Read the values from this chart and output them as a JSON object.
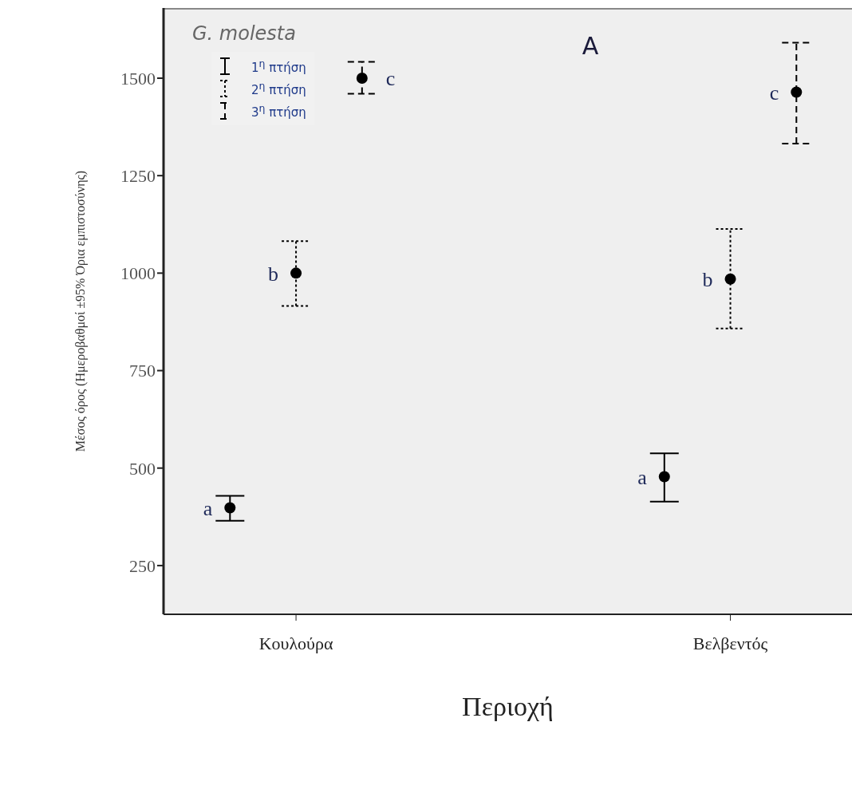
{
  "chart_data": {
    "type": "scatter",
    "title": "G. molesta",
    "xlabel": "Περιοχή",
    "ylabel": "Μέσος όρος (Ημεροβαθμοί ±95% Όρια εμπιστοσύνης)",
    "categories": [
      "Κουλούρα",
      "Βελβεντός"
    ],
    "ylim": [
      125,
      1680
    ],
    "yticks": [
      250,
      500,
      750,
      1000,
      1250,
      1500
    ],
    "series": [
      {
        "name": "1$^{η}$ πτήση",
        "color": "#000000",
        "line_style": "solid",
        "values": [
          398,
          478
        ],
        "errors": [
          [
            365,
            429
          ],
          [
            414,
            538
          ]
        ]
      },
      {
        "name": "2$^{η}$ πτήση",
        "color": "#000000",
        "line_style": "dotted",
        "values": [
          1000,
          985
        ],
        "errors": [
          [
            916,
            1082
          ],
          [
            858,
            1113
          ]
        ]
      },
      {
        "name": "3$^{η}$ πτήση",
        "color": "#000000",
        "line_style": "dashed",
        "values": [
          1500,
          1464
        ],
        "errors": [
          [
            1460,
            1542
          ],
          [
            1332,
            1591
          ]
        ]
      }
    ],
    "legend": "top left",
    "marker": "circle",
    "annotations": [
      "A",
      "a",
      "c",
      "a",
      "c",
      {
        "text": "b",
        "x": "Κουλούρα",
        "y": 1000
      },
      {
        "text": "b",
        "x": "Βελβεντός",
        "y": 985
      }
    ]
  }
}
